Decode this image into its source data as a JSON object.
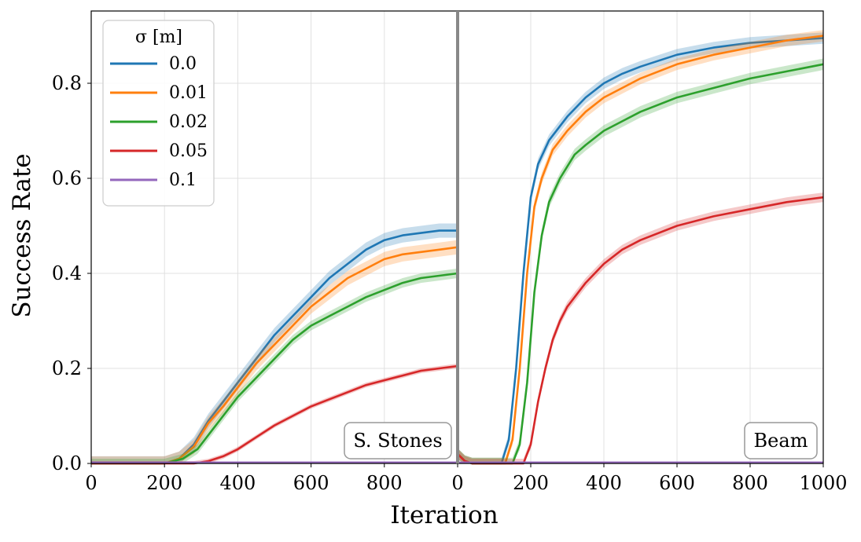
{
  "chart_data": {
    "type": "line",
    "ylabel": "Success Rate",
    "xlabel": "Iteration",
    "ylim": [
      0,
      0.95
    ],
    "yticks": [
      "0.0",
      "0.2",
      "0.4",
      "0.6",
      "0.8"
    ],
    "grid": true,
    "legend": {
      "title": "σ [m]",
      "placement": "top-left",
      "entries": [
        "0.0",
        "0.01",
        "0.02",
        "0.05",
        "0.1"
      ]
    },
    "colors": [
      "#1f77b4",
      "#ff7f0e",
      "#2ca02c",
      "#d62728",
      "#9467bd"
    ],
    "panels": [
      {
        "label": "S. Stones",
        "xlim": [
          0,
          1000
        ],
        "xticks": [
          "0",
          "200",
          "400",
          "600",
          "800"
        ],
        "series": [
          {
            "name": "0.0",
            "x": [
              0,
              200,
              240,
              280,
              320,
              360,
              400,
              450,
              500,
              550,
              600,
              650,
              700,
              750,
              800,
              850,
              900,
              950,
              1000
            ],
            "y": [
              0,
              0,
              0.01,
              0.04,
              0.09,
              0.13,
              0.17,
              0.22,
              0.27,
              0.31,
              0.35,
              0.39,
              0.42,
              0.45,
              0.47,
              0.48,
              0.485,
              0.49,
              0.49
            ],
            "band": 0.015
          },
          {
            "name": "0.01",
            "x": [
              0,
              200,
              240,
              280,
              320,
              360,
              400,
              450,
              500,
              550,
              600,
              650,
              700,
              750,
              800,
              850,
              900,
              950,
              1000
            ],
            "y": [
              0,
              0,
              0.01,
              0.035,
              0.085,
              0.12,
              0.16,
              0.21,
              0.25,
              0.29,
              0.33,
              0.36,
              0.39,
              0.41,
              0.43,
              0.44,
              0.445,
              0.45,
              0.455
            ],
            "band": 0.015
          },
          {
            "name": "0.02",
            "x": [
              0,
              200,
              250,
              290,
              330,
              370,
              400,
              450,
              500,
              550,
              600,
              650,
              700,
              750,
              800,
              850,
              900,
              950,
              1000
            ],
            "y": [
              0,
              0,
              0.01,
              0.03,
              0.07,
              0.11,
              0.14,
              0.18,
              0.22,
              0.26,
              0.29,
              0.31,
              0.33,
              0.35,
              0.365,
              0.38,
              0.39,
              0.395,
              0.4
            ],
            "band": 0.01
          },
          {
            "name": "0.05",
            "x": [
              0,
              280,
              320,
              360,
              400,
              450,
              500,
              550,
              600,
              650,
              700,
              750,
              800,
              850,
              900,
              950,
              1000
            ],
            "y": [
              0,
              0,
              0.005,
              0.015,
              0.03,
              0.055,
              0.08,
              0.1,
              0.12,
              0.135,
              0.15,
              0.165,
              0.175,
              0.185,
              0.195,
              0.2,
              0.205
            ],
            "band": 0.005
          },
          {
            "name": "0.1",
            "x": [
              0,
              1000
            ],
            "y": [
              0.002,
              0.002
            ],
            "band": 0
          }
        ]
      },
      {
        "label": "Beam",
        "xlim": [
          0,
          1000
        ],
        "xticks": [
          "0",
          "200",
          "400",
          "600",
          "800",
          "1000"
        ],
        "series": [
          {
            "name": "0.0",
            "x": [
              0,
              20,
              40,
              120,
              140,
              160,
              180,
              200,
              220,
              250,
              300,
              350,
              400,
              450,
              500,
              600,
              700,
              800,
              900,
              1000
            ],
            "y": [
              0.02,
              0.005,
              0,
              0,
              0.05,
              0.2,
              0.4,
              0.56,
              0.63,
              0.68,
              0.73,
              0.77,
              0.8,
              0.82,
              0.835,
              0.86,
              0.875,
              0.885,
              0.89,
              0.895
            ],
            "band": 0.012
          },
          {
            "name": "0.01",
            "x": [
              0,
              20,
              40,
              130,
              150,
              170,
              190,
              210,
              230,
              260,
              300,
              350,
              400,
              450,
              500,
              600,
              700,
              800,
              900,
              1000
            ],
            "y": [
              0.02,
              0.005,
              0,
              0,
              0.05,
              0.2,
              0.4,
              0.54,
              0.6,
              0.66,
              0.7,
              0.74,
              0.77,
              0.79,
              0.81,
              0.84,
              0.86,
              0.875,
              0.89,
              0.9
            ],
            "band": 0.012
          },
          {
            "name": "0.02",
            "x": [
              0,
              20,
              40,
              150,
              170,
              190,
              210,
              230,
              250,
              280,
              320,
              350,
              400,
              450,
              500,
              600,
              700,
              800,
              900,
              1000
            ],
            "y": [
              0.02,
              0.005,
              0,
              0,
              0.04,
              0.17,
              0.36,
              0.48,
              0.55,
              0.6,
              0.65,
              0.67,
              0.7,
              0.72,
              0.74,
              0.77,
              0.79,
              0.81,
              0.825,
              0.84
            ],
            "band": 0.012
          },
          {
            "name": "0.05",
            "x": [
              0,
              20,
              40,
              180,
              200,
              220,
              240,
              260,
              280,
              300,
              350,
              400,
              450,
              500,
              600,
              700,
              800,
              900,
              1000
            ],
            "y": [
              0.02,
              0.005,
              0,
              0,
              0.04,
              0.13,
              0.2,
              0.26,
              0.3,
              0.33,
              0.38,
              0.42,
              0.45,
              0.47,
              0.5,
              0.52,
              0.535,
              0.55,
              0.56
            ],
            "band": 0.01
          },
          {
            "name": "0.1",
            "x": [
              0,
              1000
            ],
            "y": [
              0.002,
              0.002
            ],
            "band": 0
          }
        ]
      }
    ]
  }
}
